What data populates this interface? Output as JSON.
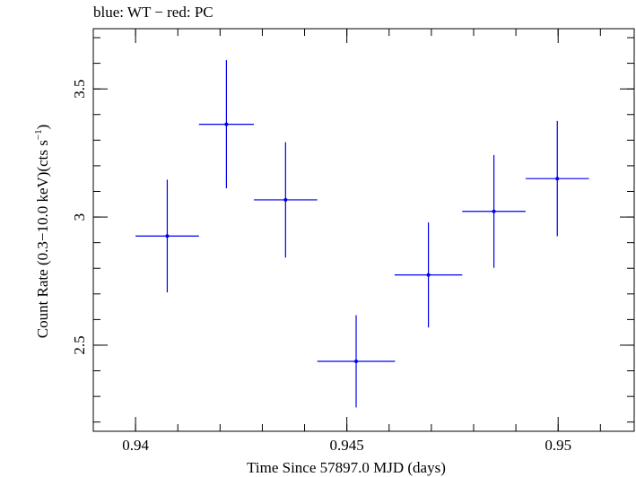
{
  "chart_data": {
    "type": "scatter",
    "title": "blue: WT − red: PC",
    "xlabel": "Time Since 57897.0 MJD (days)",
    "ylabel_main": "Count Rate (0.3−10.0 keV)(cts s",
    "ylabel_sup": "−1",
    "ylabel_end": ")",
    "xlim": [
      0.939,
      0.9518
    ],
    "ylim": [
      2.164,
      3.735
    ],
    "x_ticks": [
      {
        "value": 0.94,
        "label": "0.94"
      },
      {
        "value": 0.945,
        "label": "0.945"
      },
      {
        "value": 0.95,
        "label": "0.95"
      }
    ],
    "y_ticks": [
      {
        "value": 2.5,
        "label": "2.5"
      },
      {
        "value": 3.0,
        "label": "3"
      },
      {
        "value": 3.5,
        "label": "3.5"
      }
    ],
    "x_minor_step": 0.001,
    "y_minor_step": 0.1,
    "series": [
      {
        "color": "#0000ee",
        "points": [
          {
            "x": 0.94075,
            "xerr": 0.00075,
            "y": 2.926,
            "yerr": 0.22
          },
          {
            "x": 0.94215,
            "xerr": 0.00065,
            "y": 3.362,
            "yerr": 0.25
          },
          {
            "x": 0.94355,
            "xerr": 0.00075,
            "y": 3.067,
            "yerr": 0.225
          },
          {
            "x": 0.94522,
            "xerr": 0.00092,
            "y": 2.437,
            "yerr": 0.18
          },
          {
            "x": 0.94693,
            "xerr": 0.0008,
            "y": 2.774,
            "yerr": 0.205
          },
          {
            "x": 0.94848,
            "xerr": 0.00075,
            "y": 3.022,
            "yerr": 0.22
          },
          {
            "x": 0.94998,
            "xerr": 0.00075,
            "y": 3.15,
            "yerr": 0.225
          }
        ]
      }
    ]
  }
}
